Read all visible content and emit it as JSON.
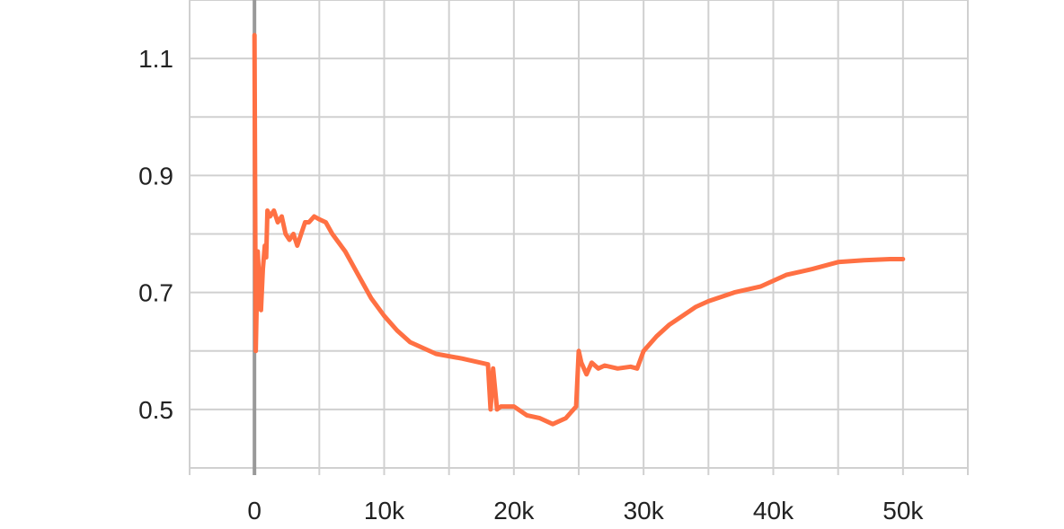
{
  "chart_data": {
    "type": "line",
    "title": "",
    "xlabel": "",
    "ylabel": "",
    "xlim": [
      -5000,
      55000
    ],
    "ylim": [
      0.4,
      1.2
    ],
    "grid": true,
    "x_ticks": [
      0,
      10000,
      20000,
      30000,
      40000,
      50000
    ],
    "x_tick_labels": [
      "0",
      "10k",
      "20k",
      "30k",
      "40k",
      "50k"
    ],
    "y_ticks": [
      0.5,
      0.7,
      0.9,
      1.1
    ],
    "y_tick_labels": [
      "0.5",
      "0.7",
      "0.9",
      "1.1"
    ],
    "series": [
      {
        "color": "#ff7043",
        "x": [
          0,
          100,
          250,
          400,
          500,
          650,
          800,
          900,
          1000,
          1200,
          1500,
          1800,
          2100,
          2400,
          2700,
          3000,
          3300,
          3600,
          3900,
          4200,
          4600,
          5000,
          5500,
          6000,
          7000,
          8000,
          9000,
          10000,
          11000,
          12000,
          13000,
          14000,
          16000,
          18000,
          18200,
          18400,
          18700,
          19000,
          20000,
          21000,
          22000,
          23000,
          24000,
          24800,
          25000,
          25200,
          25600,
          26000,
          26500,
          27000,
          28000,
          29000,
          29500,
          30000,
          31000,
          32000,
          33000,
          34000,
          35000,
          37000,
          39000,
          41000,
          43000,
          45000,
          47000,
          49000,
          50000
        ],
        "y": [
          1.14,
          0.6,
          0.77,
          0.7,
          0.67,
          0.74,
          0.78,
          0.76,
          0.84,
          0.83,
          0.84,
          0.82,
          0.83,
          0.8,
          0.79,
          0.8,
          0.78,
          0.8,
          0.82,
          0.82,
          0.83,
          0.825,
          0.82,
          0.8,
          0.77,
          0.73,
          0.69,
          0.66,
          0.635,
          0.615,
          0.605,
          0.595,
          0.587,
          0.577,
          0.5,
          0.57,
          0.5,
          0.505,
          0.505,
          0.49,
          0.485,
          0.475,
          0.485,
          0.505,
          0.6,
          0.58,
          0.56,
          0.58,
          0.57,
          0.575,
          0.57,
          0.573,
          0.57,
          0.6,
          0.625,
          0.645,
          0.66,
          0.675,
          0.685,
          0.7,
          0.71,
          0.73,
          0.74,
          0.752,
          0.755,
          0.757,
          0.757
        ]
      }
    ]
  }
}
